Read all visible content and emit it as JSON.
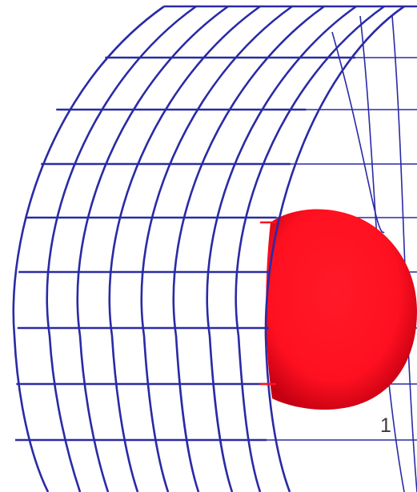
{
  "diagram": {
    "label": "1",
    "colors": {
      "background": "#ffffff",
      "grid": "#2a2aa6",
      "sphere": "#ff1020",
      "sphere_shade": "#c00010",
      "dark_lines": "#1a1a2a",
      "label": "#3a3a3a"
    }
  }
}
